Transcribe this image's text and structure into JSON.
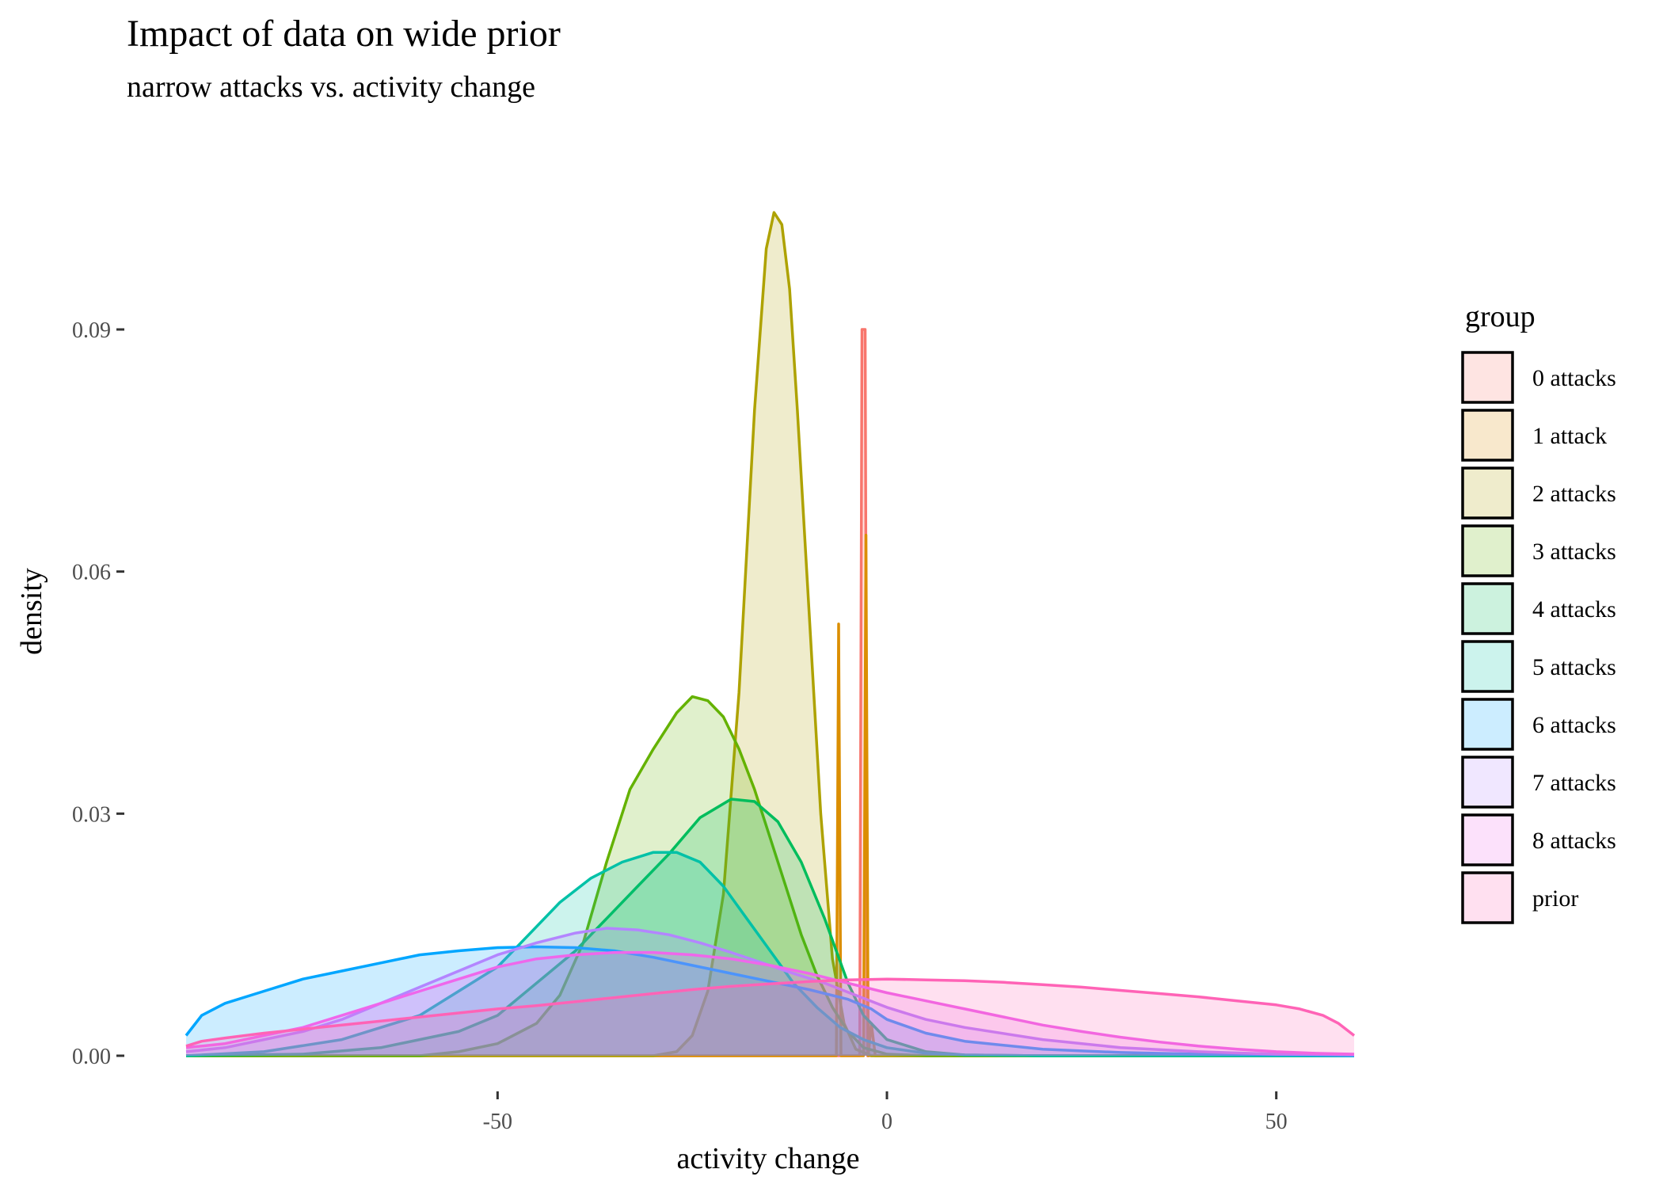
{
  "chart_data": {
    "type": "area",
    "title": "Impact of data on wide prior",
    "subtitle": "narrow attacks vs. activity change",
    "xlabel": "activity change",
    "ylabel": "density",
    "xlim": [
      -90,
      60
    ],
    "ylim": [
      0,
      0.105
    ],
    "x_ticks": [
      -50,
      0,
      50
    ],
    "x_tick_labels": [
      "-50",
      "0",
      "50"
    ],
    "y_ticks": [
      0,
      0.03,
      0.06,
      0.09
    ],
    "y_tick_labels": [
      "0.00",
      "0.03",
      "0.06",
      "0.09"
    ],
    "grid": false,
    "legend_title": "group",
    "legend_position": "right",
    "series": [
      {
        "name": "0 attacks",
        "color": "#F8766D",
        "points": [
          [
            -90,
            0
          ],
          [
            -3.5,
            0
          ],
          [
            -3.2,
            0.09
          ],
          [
            -2.8,
            0.09
          ],
          [
            -2.5,
            0
          ],
          [
            60,
            0
          ]
        ]
      },
      {
        "name": "1 attack",
        "color": "#DB8E00",
        "points": [
          [
            -90,
            0
          ],
          [
            -6.5,
            0
          ],
          [
            -6.2,
            0.0535
          ],
          [
            -5.9,
            0
          ],
          [
            -3,
            0
          ],
          [
            -2.7,
            0.0645
          ],
          [
            -2.4,
            0
          ],
          [
            -2,
            0.004
          ],
          [
            -1.5,
            0
          ],
          [
            60,
            0
          ]
        ]
      },
      {
        "name": "2 attacks",
        "color": "#AEA200",
        "points": [
          [
            -90,
            0
          ],
          [
            -30,
            0
          ],
          [
            -27,
            0.0005
          ],
          [
            -25,
            0.0025
          ],
          [
            -23,
            0.008
          ],
          [
            -21,
            0.02
          ],
          [
            -19,
            0.045
          ],
          [
            -17,
            0.08
          ],
          [
            -15.5,
            0.1
          ],
          [
            -14.5,
            0.1045
          ],
          [
            -13.5,
            0.103
          ],
          [
            -12.5,
            0.095
          ],
          [
            -11.5,
            0.08
          ],
          [
            -10,
            0.055
          ],
          [
            -8.5,
            0.03
          ],
          [
            -7,
            0.012
          ],
          [
            -5.5,
            0.004
          ],
          [
            -4,
            0.0008
          ],
          [
            -2,
            0
          ],
          [
            60,
            0
          ]
        ]
      },
      {
        "name": "3 attacks",
        "color": "#64B200",
        "points": [
          [
            -90,
            0
          ],
          [
            -60,
            0
          ],
          [
            -55,
            0.0005
          ],
          [
            -50,
            0.0015
          ],
          [
            -45,
            0.004
          ],
          [
            -42,
            0.0075
          ],
          [
            -39,
            0.014
          ],
          [
            -36,
            0.024
          ],
          [
            -33,
            0.033
          ],
          [
            -30,
            0.038
          ],
          [
            -27,
            0.0425
          ],
          [
            -25,
            0.0445
          ],
          [
            -23,
            0.044
          ],
          [
            -21,
            0.042
          ],
          [
            -19,
            0.038
          ],
          [
            -17,
            0.033
          ],
          [
            -15,
            0.027
          ],
          [
            -13,
            0.021
          ],
          [
            -11,
            0.015
          ],
          [
            -9,
            0.01
          ],
          [
            -7,
            0.006
          ],
          [
            -5,
            0.003
          ],
          [
            -3,
            0.001
          ],
          [
            0,
            0.0002
          ],
          [
            5,
            0
          ],
          [
            60,
            0
          ]
        ]
      },
      {
        "name": "4 attacks",
        "color": "#00BD5C",
        "points": [
          [
            -90,
            0
          ],
          [
            -75,
            0.0002
          ],
          [
            -65,
            0.001
          ],
          [
            -55,
            0.003
          ],
          [
            -50,
            0.005
          ],
          [
            -45,
            0.009
          ],
          [
            -40,
            0.013
          ],
          [
            -36,
            0.017
          ],
          [
            -32,
            0.021
          ],
          [
            -28,
            0.025
          ],
          [
            -24,
            0.0295
          ],
          [
            -20,
            0.0318
          ],
          [
            -17,
            0.0315
          ],
          [
            -14,
            0.029
          ],
          [
            -11,
            0.024
          ],
          [
            -8,
            0.017
          ],
          [
            -5,
            0.009
          ],
          [
            -3,
            0.005
          ],
          [
            0,
            0.002
          ],
          [
            5,
            0.0005
          ],
          [
            10,
            0.0001
          ],
          [
            20,
            0
          ],
          [
            60,
            0
          ]
        ]
      },
      {
        "name": "5 attacks",
        "color": "#00C1A7",
        "points": [
          [
            -90,
            0
          ],
          [
            -80,
            0.0005
          ],
          [
            -70,
            0.002
          ],
          [
            -60,
            0.005
          ],
          [
            -55,
            0.008
          ],
          [
            -50,
            0.011
          ],
          [
            -46,
            0.015
          ],
          [
            -42,
            0.019
          ],
          [
            -38,
            0.022
          ],
          [
            -34,
            0.024
          ],
          [
            -30,
            0.0252
          ],
          [
            -27,
            0.0252
          ],
          [
            -24,
            0.024
          ],
          [
            -21,
            0.021
          ],
          [
            -18,
            0.017
          ],
          [
            -15,
            0.013
          ],
          [
            -12,
            0.009
          ],
          [
            -9,
            0.006
          ],
          [
            -6,
            0.0035
          ],
          [
            -3,
            0.002
          ],
          [
            0,
            0.001
          ],
          [
            5,
            0.0003
          ],
          [
            10,
            0.0001
          ],
          [
            20,
            0
          ],
          [
            60,
            0
          ]
        ]
      },
      {
        "name": "6 attacks",
        "color": "#00A6FF",
        "points": [
          [
            -90,
            0.0025
          ],
          [
            -88,
            0.005
          ],
          [
            -85,
            0.0065
          ],
          [
            -80,
            0.008
          ],
          [
            -75,
            0.0095
          ],
          [
            -70,
            0.0105
          ],
          [
            -65,
            0.0115
          ],
          [
            -60,
            0.0125
          ],
          [
            -55,
            0.013
          ],
          [
            -50,
            0.0134
          ],
          [
            -45,
            0.0135
          ],
          [
            -40,
            0.0134
          ],
          [
            -35,
            0.013
          ],
          [
            -30,
            0.0122
          ],
          [
            -25,
            0.0112
          ],
          [
            -20,
            0.0102
          ],
          [
            -15,
            0.0092
          ],
          [
            -10,
            0.0082
          ],
          [
            -5,
            0.007
          ],
          [
            -2,
            0.0058
          ],
          [
            0,
            0.0045
          ],
          [
            5,
            0.0028
          ],
          [
            10,
            0.0018
          ],
          [
            20,
            0.0008
          ],
          [
            30,
            0.0004
          ],
          [
            40,
            0.0002
          ],
          [
            50,
            0.0001
          ],
          [
            60,
            0
          ]
        ]
      },
      {
        "name": "7 attacks",
        "color": "#B385FF",
        "points": [
          [
            -90,
            0.0005
          ],
          [
            -85,
            0.001
          ],
          [
            -80,
            0.002
          ],
          [
            -75,
            0.003
          ],
          [
            -70,
            0.0045
          ],
          [
            -65,
            0.0065
          ],
          [
            -60,
            0.0085
          ],
          [
            -55,
            0.0105
          ],
          [
            -50,
            0.0125
          ],
          [
            -45,
            0.014
          ],
          [
            -40,
            0.0152
          ],
          [
            -36,
            0.0158
          ],
          [
            -32,
            0.0156
          ],
          [
            -28,
            0.015
          ],
          [
            -24,
            0.014
          ],
          [
            -20,
            0.0128
          ],
          [
            -16,
            0.0115
          ],
          [
            -12,
            0.0102
          ],
          [
            -8,
            0.009
          ],
          [
            -4,
            0.0075
          ],
          [
            0,
            0.006
          ],
          [
            5,
            0.0045
          ],
          [
            10,
            0.0035
          ],
          [
            20,
            0.002
          ],
          [
            30,
            0.001
          ],
          [
            40,
            0.0005
          ],
          [
            50,
            0.0002
          ],
          [
            60,
            0.0001
          ]
        ]
      },
      {
        "name": "8 attacks",
        "color": "#EF67EB",
        "points": [
          [
            -90,
            0.001
          ],
          [
            -85,
            0.0015
          ],
          [
            -80,
            0.0025
          ],
          [
            -75,
            0.0035
          ],
          [
            -70,
            0.005
          ],
          [
            -65,
            0.0065
          ],
          [
            -60,
            0.008
          ],
          [
            -55,
            0.0095
          ],
          [
            -50,
            0.011
          ],
          [
            -45,
            0.012
          ],
          [
            -40,
            0.0125
          ],
          [
            -35,
            0.0128
          ],
          [
            -30,
            0.0128
          ],
          [
            -25,
            0.0125
          ],
          [
            -20,
            0.012
          ],
          [
            -15,
            0.0112
          ],
          [
            -10,
            0.0102
          ],
          [
            -5,
            0.009
          ],
          [
            0,
            0.0078
          ],
          [
            5,
            0.0068
          ],
          [
            10,
            0.0058
          ],
          [
            15,
            0.0048
          ],
          [
            20,
            0.0038
          ],
          [
            25,
            0.003
          ],
          [
            30,
            0.0023
          ],
          [
            35,
            0.0017
          ],
          [
            40,
            0.0012
          ],
          [
            45,
            0.0008
          ],
          [
            50,
            0.0005
          ],
          [
            55,
            0.0003
          ],
          [
            60,
            0.0002
          ]
        ]
      },
      {
        "name": "prior",
        "color": "#FF63B6",
        "points": [
          [
            -90,
            0.0012
          ],
          [
            -88,
            0.0018
          ],
          [
            -85,
            0.0022
          ],
          [
            -80,
            0.0028
          ],
          [
            -75,
            0.0033
          ],
          [
            -70,
            0.0038
          ],
          [
            -65,
            0.0043
          ],
          [
            -60,
            0.0048
          ],
          [
            -55,
            0.0053
          ],
          [
            -50,
            0.0058
          ],
          [
            -45,
            0.0062
          ],
          [
            -40,
            0.0067
          ],
          [
            -35,
            0.0072
          ],
          [
            -30,
            0.0077
          ],
          [
            -25,
            0.0082
          ],
          [
            -20,
            0.0086
          ],
          [
            -15,
            0.0089
          ],
          [
            -10,
            0.0092
          ],
          [
            -5,
            0.0094
          ],
          [
            0,
            0.0095
          ],
          [
            5,
            0.0094
          ],
          [
            10,
            0.0093
          ],
          [
            15,
            0.0091
          ],
          [
            20,
            0.0088
          ],
          [
            25,
            0.0085
          ],
          [
            30,
            0.0081
          ],
          [
            35,
            0.0077
          ],
          [
            40,
            0.0073
          ],
          [
            45,
            0.0068
          ],
          [
            50,
            0.0063
          ],
          [
            53,
            0.0058
          ],
          [
            56,
            0.005
          ],
          [
            58,
            0.004
          ],
          [
            60,
            0.0025
          ]
        ]
      }
    ]
  }
}
